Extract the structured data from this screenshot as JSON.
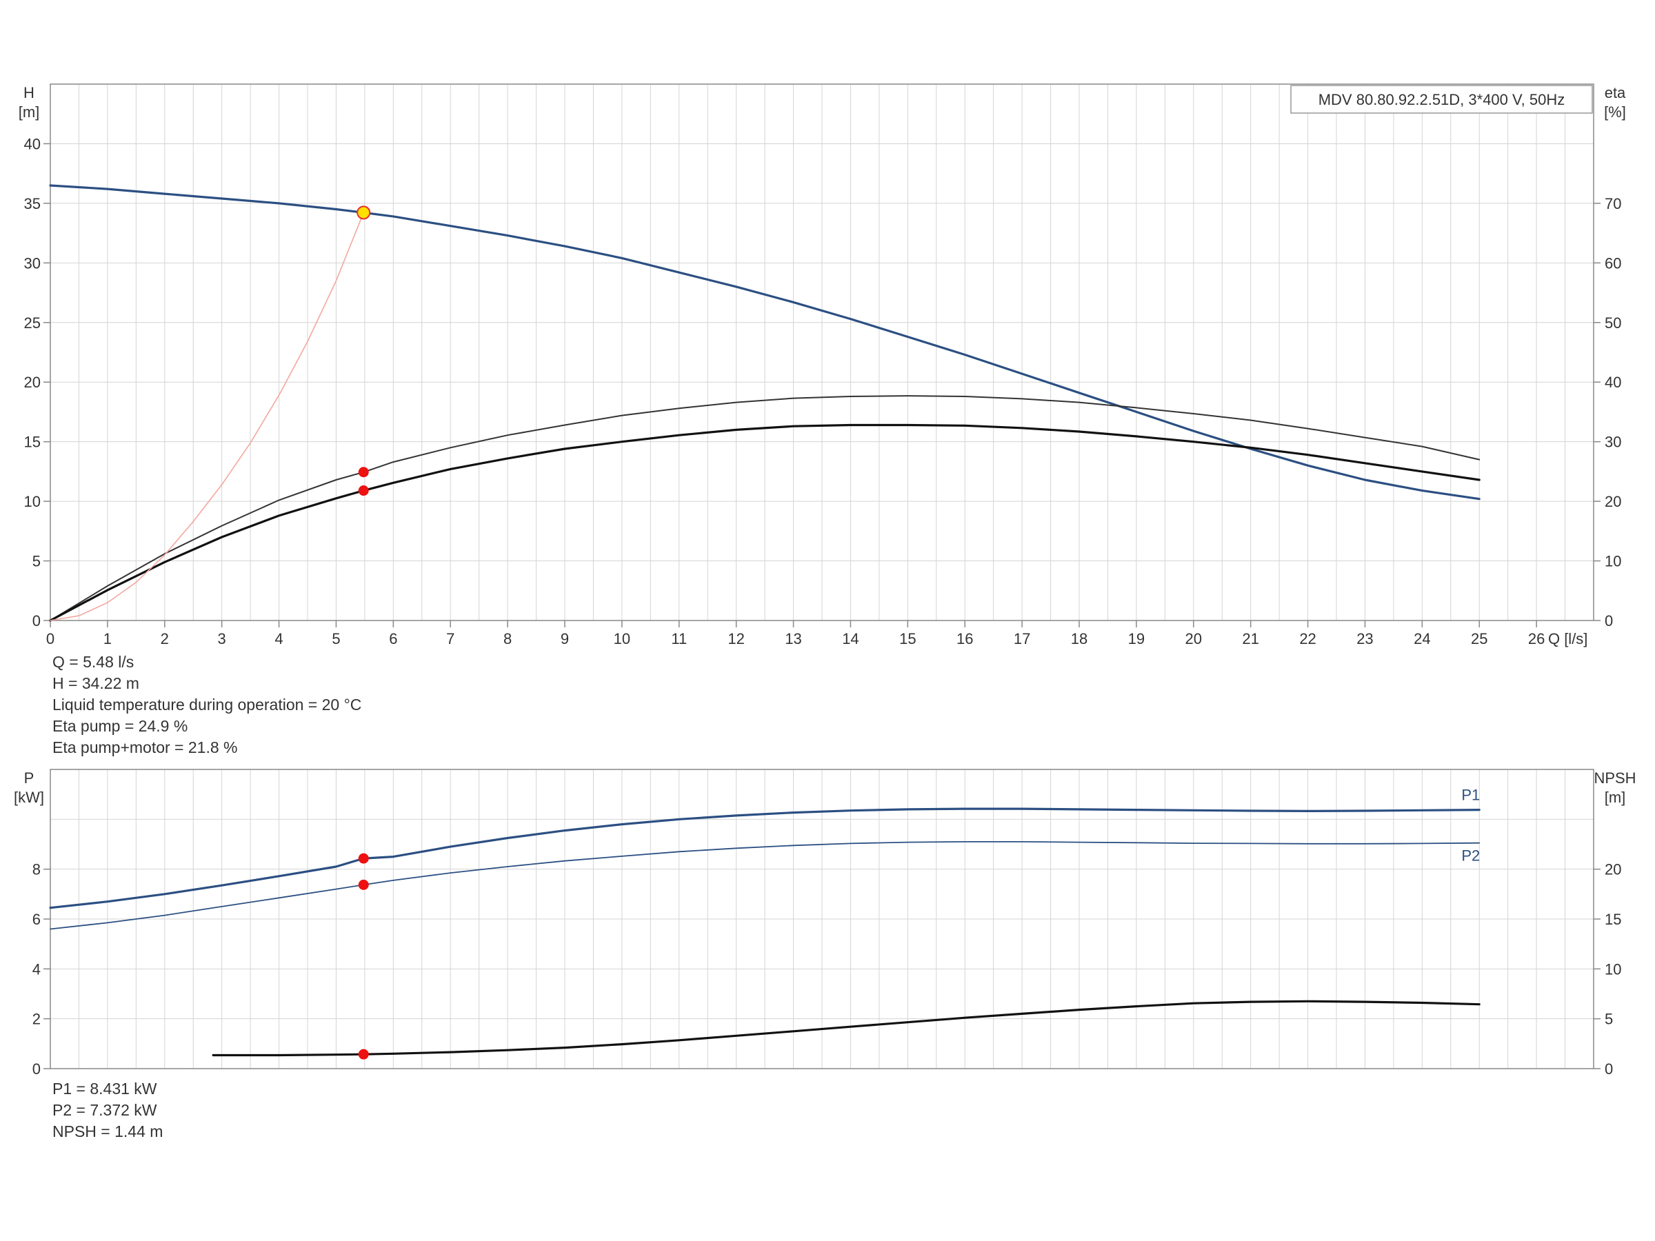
{
  "chart_data": [
    {
      "type": "line",
      "title": "MDV 80.80.92.2.51D, 3*400 V, 50Hz",
      "left_axis": {
        "label_line1": "H",
        "label_line2": "[m]",
        "range": [
          0,
          45
        ],
        "ticks": [
          0,
          5,
          10,
          15,
          20,
          25,
          30,
          35,
          40
        ]
      },
      "right_axis": {
        "label_line1": "eta",
        "label_line2": "[%]",
        "range": [
          0,
          90
        ],
        "ticks": [
          0,
          10,
          20,
          30,
          40,
          50,
          60,
          70
        ]
      },
      "x_axis": {
        "label": "Q [l/s]",
        "range": [
          0,
          27
        ],
        "ticks": [
          0,
          1,
          2,
          3,
          4,
          5,
          6,
          7,
          8,
          9,
          10,
          11,
          12,
          13,
          14,
          15,
          16,
          17,
          18,
          19,
          20,
          21,
          22,
          23,
          24,
          25,
          26
        ]
      },
      "grid": true,
      "series": [
        {
          "id": "head",
          "axis": "left",
          "color": "#2b4f82",
          "width": 3.2,
          "x": [
            0,
            1,
            2,
            3,
            4,
            5,
            5.48,
            6,
            7,
            8,
            9,
            10,
            11,
            12,
            13,
            14,
            15,
            16,
            17,
            18,
            19,
            20,
            21,
            22,
            23,
            24,
            25
          ],
          "y": [
            36.5,
            36.2,
            35.8,
            35.4,
            35.0,
            34.5,
            34.22,
            33.9,
            33.1,
            32.3,
            31.4,
            30.4,
            29.2,
            28.0,
            26.7,
            25.3,
            23.8,
            22.3,
            20.7,
            19.1,
            17.5,
            15.9,
            14.4,
            13.0,
            11.8,
            10.9,
            10.2
          ]
        },
        {
          "id": "eta-pump",
          "axis": "right",
          "color": "#333333",
          "width": 2,
          "x": [
            0,
            1,
            2,
            3,
            4,
            5,
            5.48,
            6,
            7,
            8,
            9,
            10,
            11,
            12,
            13,
            14,
            15,
            16,
            17,
            18,
            19,
            20,
            21,
            22,
            23,
            24,
            25
          ],
          "y": [
            0,
            5.8,
            11.2,
            15.9,
            20.2,
            23.6,
            24.9,
            26.6,
            29.0,
            31.1,
            32.8,
            34.4,
            35.6,
            36.6,
            37.3,
            37.6,
            37.7,
            37.6,
            37.2,
            36.6,
            35.7,
            34.7,
            33.6,
            32.2,
            30.7,
            29.2,
            27.0
          ]
        },
        {
          "id": "eta-pump-motor",
          "axis": "right",
          "color": "#111111",
          "width": 3.2,
          "x": [
            0,
            1,
            2,
            3,
            4,
            5,
            5.48,
            6,
            7,
            8,
            9,
            10,
            11,
            12,
            13,
            14,
            15,
            16,
            17,
            18,
            19,
            20,
            21,
            22,
            23,
            24,
            25
          ],
          "y": [
            0,
            5.1,
            9.8,
            14.0,
            17.6,
            20.5,
            21.8,
            23.1,
            25.4,
            27.2,
            28.8,
            30.0,
            31.1,
            32.0,
            32.6,
            32.8,
            32.8,
            32.7,
            32.3,
            31.7,
            30.9,
            30.0,
            29.0,
            27.8,
            26.4,
            25.0,
            23.6
          ]
        },
        {
          "id": "system",
          "axis": "left",
          "color": "#f4a7a0",
          "width": 1.6,
          "x": [
            0,
            0.5,
            1,
            1.5,
            2,
            2.5,
            3,
            3.5,
            4,
            4.5,
            5,
            5.48
          ],
          "y": [
            0,
            0.4,
            1.5,
            3.2,
            5.5,
            8.3,
            11.4,
            14.9,
            18.9,
            23.4,
            28.5,
            34.22
          ]
        }
      ],
      "operating_point": {
        "q": 5.48,
        "h": 34.22,
        "eta_pump": 24.9,
        "eta_pump_motor": 21.8,
        "color": "#ffe000",
        "ring": "#e53030"
      },
      "marker_color": "#ee1111"
    },
    {
      "type": "line",
      "left_axis": {
        "label_line1": "P",
        "label_line2": "[kW]",
        "range": [
          0,
          12
        ],
        "ticks": [
          0,
          2,
          4,
          6,
          8
        ]
      },
      "right_axis": {
        "label_line1": "NPSH",
        "label_line2": "[m]",
        "range": [
          0,
          30
        ],
        "ticks": [
          0,
          5,
          10,
          15,
          20
        ]
      },
      "x_axis": {
        "range": [
          0,
          27
        ]
      },
      "grid": true,
      "series": [
        {
          "id": "P1",
          "name": "P1",
          "axis": "left",
          "color": "#2b4f82",
          "width": 3.2,
          "x": [
            0,
            1,
            2,
            3,
            4,
            5,
            5.48,
            6,
            7,
            8,
            9,
            10,
            11,
            12,
            13,
            14,
            15,
            16,
            17,
            18,
            19,
            20,
            21,
            22,
            23,
            24,
            25
          ],
          "y": [
            6.45,
            6.7,
            7.0,
            7.35,
            7.72,
            8.1,
            8.431,
            8.5,
            8.9,
            9.25,
            9.55,
            9.8,
            10.0,
            10.15,
            10.27,
            10.35,
            10.4,
            10.42,
            10.42,
            10.4,
            10.38,
            10.36,
            10.34,
            10.33,
            10.34,
            10.36,
            10.38
          ]
        },
        {
          "id": "P2",
          "name": "P2",
          "axis": "left",
          "color": "#2b4f82",
          "width": 1.8,
          "x": [
            0,
            1,
            2,
            3,
            4,
            5,
            5.48,
            6,
            7,
            8,
            9,
            10,
            11,
            12,
            13,
            14,
            15,
            16,
            17,
            18,
            19,
            20,
            21,
            22,
            23,
            24,
            25
          ],
          "y": [
            5.6,
            5.85,
            6.15,
            6.5,
            6.85,
            7.2,
            7.372,
            7.55,
            7.85,
            8.1,
            8.33,
            8.52,
            8.7,
            8.84,
            8.95,
            9.03,
            9.08,
            9.1,
            9.1,
            9.08,
            9.06,
            9.04,
            9.03,
            9.02,
            9.02,
            9.03,
            9.05
          ]
        },
        {
          "id": "NPSH",
          "axis": "right",
          "color": "#111111",
          "width": 3.2,
          "x": [
            2.85,
            4,
            5,
            5.48,
            6,
            7,
            8,
            9,
            10,
            11,
            12,
            13,
            14,
            15,
            16,
            17,
            18,
            19,
            20,
            21,
            22,
            23,
            24,
            25
          ],
          "y": [
            1.35,
            1.35,
            1.4,
            1.44,
            1.5,
            1.65,
            1.85,
            2.1,
            2.45,
            2.85,
            3.3,
            3.75,
            4.2,
            4.65,
            5.1,
            5.5,
            5.9,
            6.25,
            6.55,
            6.7,
            6.75,
            6.7,
            6.6,
            6.45
          ]
        }
      ],
      "markers": [
        {
          "q": 5.48,
          "value": 8.431,
          "axis": "left"
        },
        {
          "q": 5.48,
          "value": 7.372,
          "axis": "left"
        },
        {
          "q": 5.48,
          "value": 1.44,
          "axis": "right"
        }
      ],
      "marker_color": "#ee1111"
    }
  ],
  "info_top": {
    "q": "Q = 5.48 l/s",
    "h": "H = 34.22 m",
    "temp": "Liquid temperature during operation = 20 °C",
    "eta_pump": "Eta pump = 24.9 %",
    "eta_pump_motor": "Eta pump+motor = 21.8 %"
  },
  "info_bottom": {
    "p1": "P1 = 8.431 kW",
    "p2": "P2 = 7.372 kW",
    "npsh": "NPSH = 1.44 m"
  },
  "colors": {
    "grid": "#d4d4d4",
    "frame": "#888888",
    "text": "#333333"
  }
}
